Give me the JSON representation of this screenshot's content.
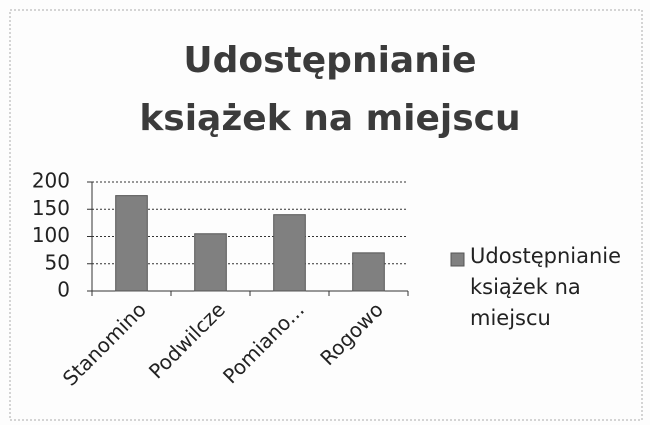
{
  "chart_data": {
    "type": "bar",
    "title": "Udostępnianie książek na miejscu",
    "categories": [
      "Stanomino",
      "Podwilcze",
      "Pomiano...",
      "Rogowo"
    ],
    "series": [
      {
        "name": "Udostępnianie książek na miejscu",
        "color": "#808080",
        "values": [
          175,
          105,
          140,
          70
        ]
      }
    ],
    "ylim": [
      0,
      200
    ],
    "yticks": [
      0,
      50,
      100,
      150,
      200
    ],
    "grid": true,
    "legend": "right"
  }
}
